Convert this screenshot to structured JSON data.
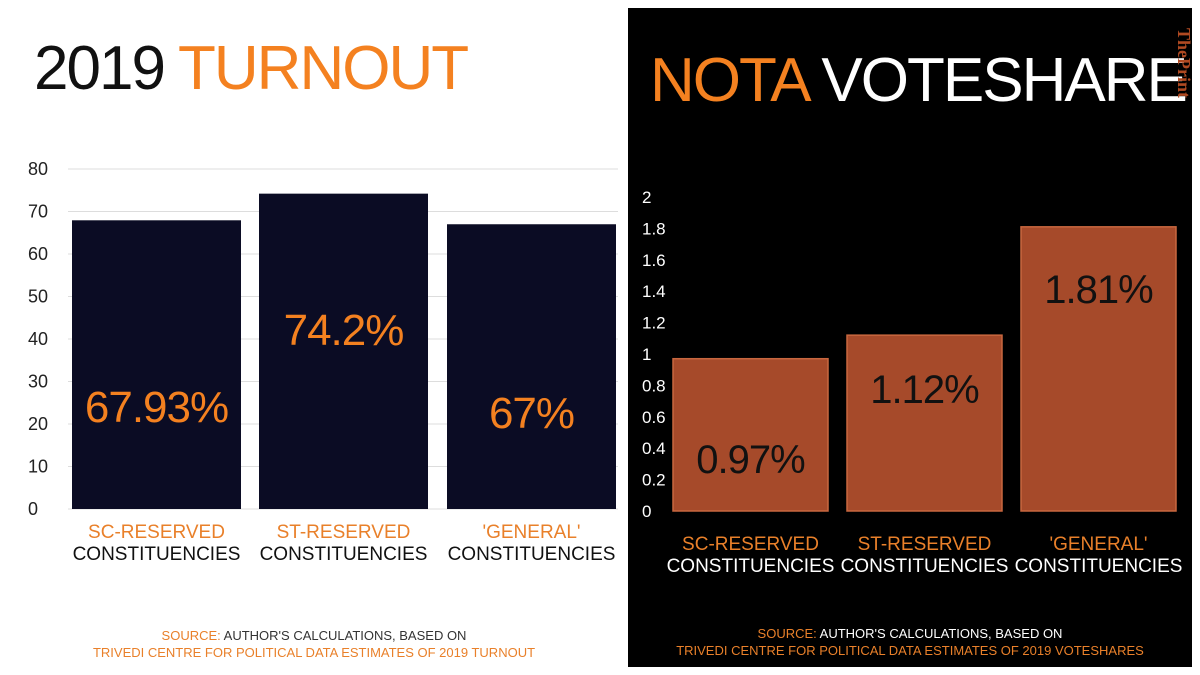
{
  "left": {
    "title_plain": "2019 ",
    "title_accent": "TURNOUT",
    "source_label": "SOURCE:",
    "source_rest": " AUTHOR'S CALCULATIONS, BASED ON",
    "source_line2": "TRIVEDI CENTRE FOR POLITICAL DATA ESTIMATES OF 2019 TURNOUT"
  },
  "right": {
    "title_accent": "NOTA",
    "title_plain": " VOTESHARE",
    "brand": "ThePrint",
    "source_label": "SOURCE:",
    "source_rest": " AUTHOR'S CALCULATIONS, BASED ON",
    "source_line2": "TRIVEDI CENTRE FOR POLITICAL DATA ESTIMATES OF 2019 VOTESHARES"
  },
  "colors": {
    "accent": "#f48120",
    "turnout_bar": "#0b0c24",
    "nota_bar": "#a64a2a",
    "label_orange": "#e9802a"
  },
  "chart_data": [
    {
      "type": "bar",
      "title": "2019 TURNOUT",
      "categories": [
        "SC-RESERVED CONSTITUENCIES",
        "ST-RESERVED CONSTITUENCIES",
        "'GENERAL' CONSTITUENCIES"
      ],
      "category_lines": [
        [
          "SC-RESERVED",
          "CONSTITUENCIES"
        ],
        [
          "ST-RESERVED",
          "CONSTITUENCIES"
        ],
        [
          "'GENERAL'",
          "CONSTITUENCIES"
        ]
      ],
      "values": [
        67.93,
        74.2,
        67
      ],
      "data_labels": [
        "67.93%",
        "74.2%",
        "67%"
      ],
      "yticks": [
        "0",
        "10",
        "20",
        "30",
        "40",
        "50",
        "60",
        "70",
        "80"
      ],
      "ylim": [
        0,
        80
      ],
      "grid": true
    },
    {
      "type": "bar",
      "title": "NOTA VOTESHARE",
      "categories": [
        "SC-RESERVED CONSTITUENCIES",
        "ST-RESERVED CONSTITUENCIES",
        "'GENERAL' CONSTITUENCIES"
      ],
      "category_lines": [
        [
          "SC-RESERVED",
          "CONSTITUENCIES"
        ],
        [
          "ST-RESERVED",
          "CONSTITUENCIES"
        ],
        [
          "'GENERAL'",
          "CONSTITUENCIES"
        ]
      ],
      "values": [
        0.97,
        1.12,
        1.81
      ],
      "data_labels": [
        "0.97%",
        "1.12%",
        "1.81%"
      ],
      "yticks": [
        "0",
        "0.2",
        "0.4",
        "0.6",
        "0.8",
        "1",
        "1.2",
        "1.4",
        "1.6",
        "1.8",
        "2"
      ],
      "ylim": [
        0,
        2
      ],
      "grid": false
    }
  ]
}
